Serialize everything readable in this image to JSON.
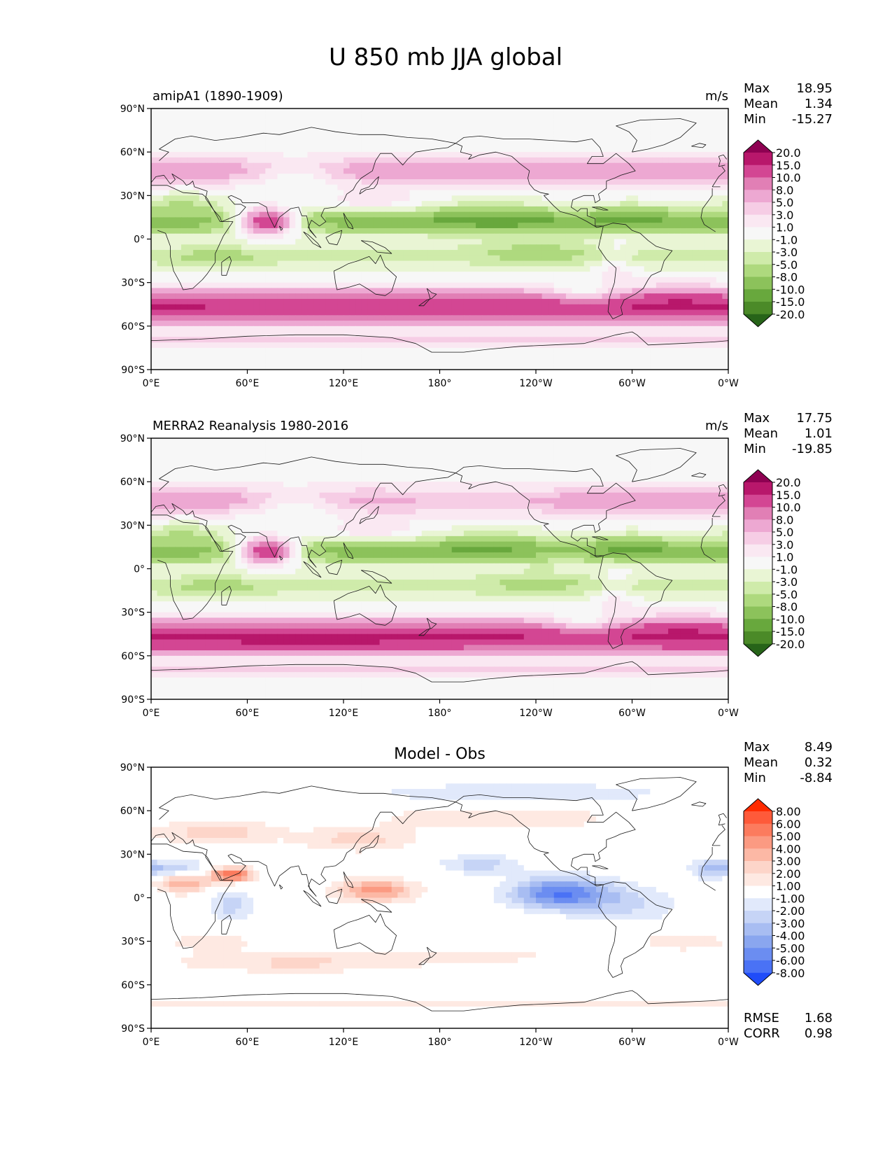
{
  "title": "U 850 mb JJA global",
  "lat_ticks": [
    "90°N",
    "60°N",
    "30°N",
    "0°",
    "30°S",
    "60°S",
    "90°S"
  ],
  "lon_ticks": [
    "0°E",
    "60°E",
    "120°E",
    "180°",
    "120°W",
    "60°W",
    "0°W"
  ],
  "stat_labels": {
    "max": "Max",
    "mean": "Mean",
    "min": "Min",
    "rmse": "RMSE",
    "corr": "CORR"
  },
  "colorbars": {
    "piyg": {
      "labels": [
        "20.0",
        "15.0",
        "10.0",
        "8.0",
        "5.0",
        "3.0",
        "1.0",
        "-1.0",
        "-3.0",
        "-5.0",
        "-8.0",
        "-10.0",
        "-15.0",
        "-20.0"
      ],
      "colors": [
        "#8e0152",
        "#b8176b",
        "#d34693",
        "#e17fb5",
        "#eda8d2",
        "#f6cde5",
        "#fae8f2",
        "#f7f7f7",
        "#e9f5d4",
        "#cfebaa",
        "#aed97e",
        "#8cc25b",
        "#68a83d",
        "#4b8a28",
        "#276419"
      ]
    },
    "bwr": {
      "labels": [
        "8.00",
        "6.00",
        "5.00",
        "4.00",
        "3.00",
        "2.00",
        "1.00",
        "-1.00",
        "-2.00",
        "-3.00",
        "-4.00",
        "-5.00",
        "-6.00",
        "-8.00"
      ],
      "colors": [
        "#ff2b00",
        "#fe5a3a",
        "#fc7b5e",
        "#fb9a82",
        "#fcb8a5",
        "#fdd5c9",
        "#fee9e2",
        "#ffffff",
        "#e1e9fb",
        "#c6d4f6",
        "#a8bdf2",
        "#8aa6ef",
        "#6b8df1",
        "#4a72f5",
        "#1f4cf9"
      ]
    }
  },
  "chart_data": [
    {
      "type": "heatmap",
      "title": "amipA1 (1890-1909)",
      "units": "m/s",
      "xlabel": "",
      "ylabel": "",
      "xlim": [
        0,
        360
      ],
      "ylim": [
        -90,
        90
      ],
      "stats": {
        "max": "18.95",
        "mean": "1.34",
        "min": "-15.27"
      },
      "colorbar": "piyg"
    },
    {
      "type": "heatmap",
      "title": "MERRA2 Reanalysis 1980-2016",
      "units": "m/s",
      "xlabel": "",
      "ylabel": "",
      "xlim": [
        0,
        360
      ],
      "ylim": [
        -90,
        90
      ],
      "stats": {
        "max": "17.75",
        "mean": "1.01",
        "min": "-19.85"
      },
      "colorbar": "piyg"
    },
    {
      "type": "heatmap",
      "title": "Model - Obs",
      "xlabel": "",
      "ylabel": "",
      "xlim": [
        0,
        360
      ],
      "ylim": [
        -90,
        90
      ],
      "stats": {
        "max": "8.49",
        "mean": "0.32",
        "min": "-8.84",
        "rmse": "1.68",
        "corr": "0.98"
      },
      "colorbar": "bwr"
    }
  ]
}
